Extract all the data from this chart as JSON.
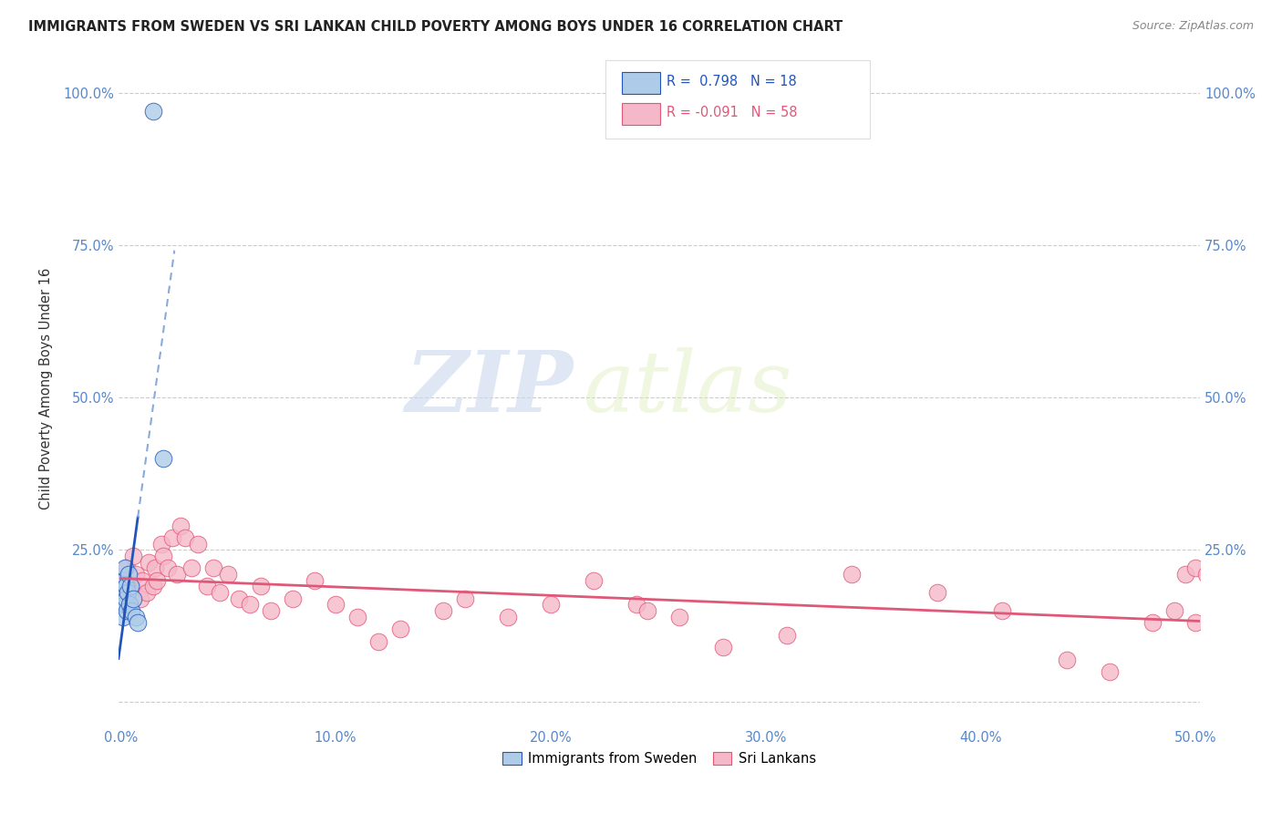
{
  "title": "IMMIGRANTS FROM SWEDEN VS SRI LANKAN CHILD POVERTY AMONG BOYS UNDER 16 CORRELATION CHART",
  "source": "Source: ZipAtlas.com",
  "ylabel": "Child Poverty Among Boys Under 16",
  "xlim": [
    -0.001,
    0.502
  ],
  "ylim": [
    -0.04,
    1.07
  ],
  "legend_r_sweden": "0.798",
  "legend_n_sweden": "18",
  "legend_r_srilanka": "-0.091",
  "legend_n_srilanka": "58",
  "color_sweden": "#aecce8",
  "color_srilanka": "#f5b8c8",
  "line_color_sweden": "#2255bb",
  "line_color_srilanka": "#e05878",
  "watermark_zip": "ZIP",
  "watermark_atlas": "atlas",
  "sweden_x": [
    0.001,
    0.0013,
    0.0015,
    0.0018,
    0.002,
    0.0022,
    0.0025,
    0.003,
    0.0032,
    0.0035,
    0.004,
    0.0045,
    0.005,
    0.006,
    0.007,
    0.008,
    0.02,
    0.015
  ],
  "sweden_y": [
    0.14,
    0.18,
    0.2,
    0.16,
    0.22,
    0.19,
    0.17,
    0.15,
    0.18,
    0.21,
    0.16,
    0.19,
    0.15,
    0.17,
    0.14,
    0.13,
    0.4,
    0.97
  ],
  "srilanka_x": [
    0.001,
    0.002,
    0.003,
    0.004,
    0.005,
    0.006,
    0.007,
    0.009,
    0.01,
    0.012,
    0.013,
    0.015,
    0.016,
    0.017,
    0.019,
    0.02,
    0.022,
    0.024,
    0.026,
    0.028,
    0.03,
    0.033,
    0.036,
    0.04,
    0.043,
    0.046,
    0.05,
    0.055,
    0.06,
    0.065,
    0.07,
    0.08,
    0.09,
    0.1,
    0.11,
    0.12,
    0.13,
    0.15,
    0.16,
    0.18,
    0.2,
    0.22,
    0.24,
    0.26,
    0.28,
    0.31,
    0.34,
    0.38,
    0.41,
    0.44,
    0.46,
    0.48,
    0.49,
    0.495,
    0.5,
    0.5,
    0.505,
    0.245
  ],
  "srilanka_y": [
    0.2,
    0.18,
    0.22,
    0.16,
    0.19,
    0.24,
    0.21,
    0.17,
    0.2,
    0.18,
    0.23,
    0.19,
    0.22,
    0.2,
    0.26,
    0.24,
    0.22,
    0.27,
    0.21,
    0.29,
    0.27,
    0.22,
    0.26,
    0.19,
    0.22,
    0.18,
    0.21,
    0.17,
    0.16,
    0.19,
    0.15,
    0.17,
    0.2,
    0.16,
    0.14,
    0.1,
    0.12,
    0.15,
    0.17,
    0.14,
    0.16,
    0.2,
    0.16,
    0.14,
    0.09,
    0.11,
    0.21,
    0.18,
    0.15,
    0.07,
    0.05,
    0.13,
    0.15,
    0.21,
    0.13,
    0.22,
    0.21,
    0.15
  ],
  "xticks": [
    0.0,
    0.1,
    0.2,
    0.3,
    0.4,
    0.5
  ],
  "xticklabels": [
    "0.0%",
    "10.0%",
    "20.0%",
    "30.0%",
    "40.0%",
    "50.0%"
  ],
  "yticks": [
    0.0,
    0.25,
    0.5,
    0.75,
    1.0
  ],
  "yticklabels": [
    "",
    "25.0%",
    "50.0%",
    "75.0%",
    "100.0%"
  ],
  "tick_color": "#5588cc",
  "grid_color": "#cccccc",
  "background_color": "#ffffff"
}
